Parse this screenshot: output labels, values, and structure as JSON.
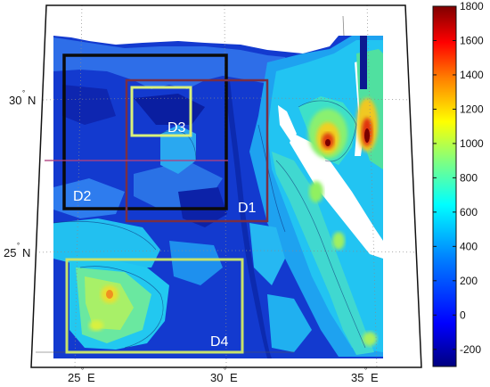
{
  "map": {
    "domains": [
      {
        "id": "d1",
        "label": "D1",
        "color": "#7a2e45"
      },
      {
        "id": "d2",
        "label": "D2",
        "color": "#0b0b0b"
      },
      {
        "id": "d3",
        "label": "D3",
        "color": "#d8f07a"
      },
      {
        "id": "d4",
        "label": "D4",
        "color": "#c8e26a"
      }
    ],
    "lat_labels": {
      "n30": "30",
      "n25": "25",
      "hemi": "N"
    },
    "lon_labels": {
      "e25": "25",
      "e30": "30",
      "e35": "35",
      "hemi": "E"
    },
    "degree": "°"
  },
  "colorbar": {
    "ticks": [
      "1800",
      "1600",
      "1400",
      "1200",
      "1000",
      "800",
      "600",
      "400",
      "200",
      "0",
      "-200"
    ],
    "min": -300,
    "max": 1800,
    "gradient": [
      "#00007f",
      "#0000ff",
      "#0080ff",
      "#00ffff",
      "#80ff80",
      "#ffff00",
      "#ff8000",
      "#ff0000",
      "#7f0000"
    ]
  }
}
